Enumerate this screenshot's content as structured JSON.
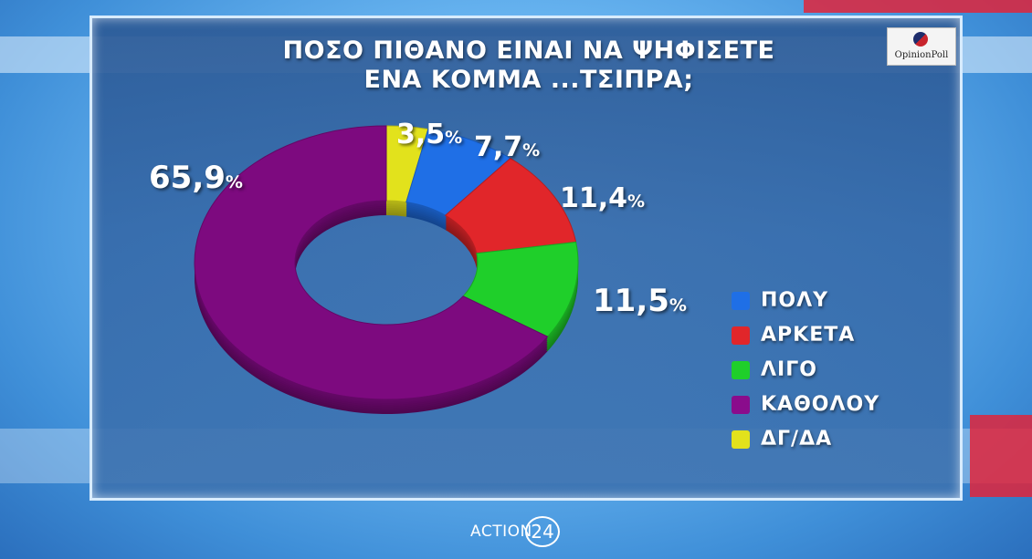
{
  "title_line1": "ΠΟΣΟ ΠΙΘΑΝΟ ΕΙΝΑΙ ΝΑ ΨΗΦΙΣΕΤΕ",
  "title_line2": "ΕΝΑ ΚΟΜΜΑ ...ΤΣΙΠΡΑ;",
  "logo_text": "OpinionPoll",
  "brand_text": "ACTION",
  "brand_number": "24",
  "chart_data": {
    "type": "pie",
    "style": "donut",
    "title": "ΠΟΣΟ ΠΙΘΑΝΟ ΕΙΝΑΙ ΝΑ ΨΗΦΙΣΕΤΕ ΕΝΑ ΚΟΜΜΑ ...ΤΣΙΠΡΑ;",
    "legend_position": "right",
    "unit": "%",
    "slices": [
      {
        "label": "ΠΟΛΥ",
        "value": 7.7,
        "value_text": "7,7",
        "color": "#1f6fe6"
      },
      {
        "label": "ΑΡΚΕΤΑ",
        "value": 11.4,
        "value_text": "11,4",
        "color": "#e1262a"
      },
      {
        "label": "ΛΙΓΟ",
        "value": 11.5,
        "value_text": "11,5",
        "color": "#1fcf2a"
      },
      {
        "label": "ΚΑΘΟΛΟΥ",
        "value": 65.9,
        "value_text": "65,9",
        "color": "#7d0a7f"
      },
      {
        "label": "ΔΓ/ΔΑ",
        "value": 3.5,
        "value_text": "3,5",
        "color": "#e2e21c"
      }
    ]
  }
}
